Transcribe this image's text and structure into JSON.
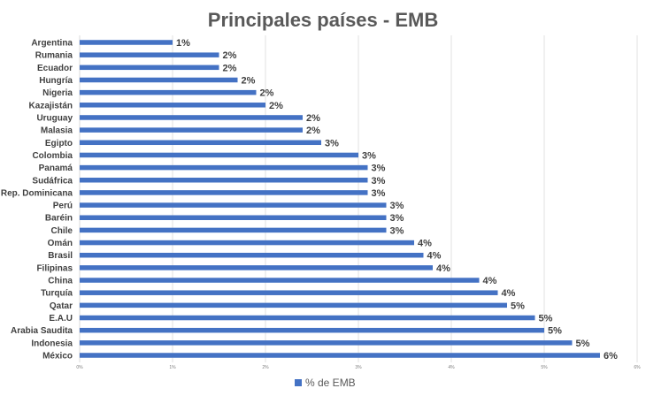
{
  "chart_data": {
    "type": "bar",
    "orientation": "horizontal",
    "title": "Principales países - EMB",
    "series": [
      {
        "name": "% de EMB",
        "color": "#4472C4",
        "categories": [
          "Argentina",
          "Rumania",
          "Ecuador",
          "Hungría",
          "Nigeria",
          "Kazajistán",
          "Uruguay",
          "Malasia",
          "Egipto",
          "Colombia",
          "Panamá",
          "Sudáfrica",
          "Rep. Dominicana",
          "Perú",
          "Baréin",
          "Chile",
          "Omán",
          "Brasil",
          "Filipinas",
          "China",
          "Turquía",
          "Qatar",
          "E.A.U",
          "Arabia Saudita",
          "Indonesia",
          "México"
        ],
        "values": [
          1.0,
          1.5,
          1.5,
          1.7,
          1.9,
          2.0,
          2.4,
          2.4,
          2.6,
          3.0,
          3.1,
          3.1,
          3.1,
          3.3,
          3.3,
          3.3,
          3.6,
          3.7,
          3.8,
          4.3,
          4.5,
          4.6,
          4.9,
          5.0,
          5.3,
          5.6
        ],
        "data_labels": [
          "1%",
          "2%",
          "2%",
          "2%",
          "2%",
          "2%",
          "2%",
          "2%",
          "3%",
          "3%",
          "3%",
          "3%",
          "3%",
          "3%",
          "3%",
          "3%",
          "4%",
          "4%",
          "4%",
          "4%",
          "4%",
          "5%",
          "5%",
          "5%",
          "5%",
          "6%"
        ]
      }
    ],
    "x_axis": {
      "range": [
        0,
        6
      ],
      "ticks": [
        0,
        1,
        2,
        3,
        4,
        5,
        6
      ],
      "tick_labels": [
        "0%",
        "1%",
        "2%",
        "3%",
        "4%",
        "5%",
        "6%"
      ]
    },
    "grid": true,
    "legend": {
      "position": "bottom",
      "entries": [
        "% de EMB"
      ]
    }
  }
}
